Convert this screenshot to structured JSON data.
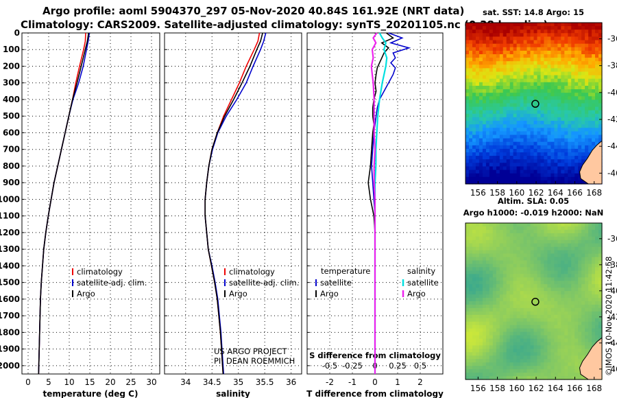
{
  "title": {
    "line1": "Argo profile: aoml 5904370_297 05-Nov-2020 40.84S 161.92E (NRT data)",
    "line2": "Climatology: CARS2009. Satellite-adjusted climatology: synTS_20201105.nc (0.38d earlier)"
  },
  "colors": {
    "climatology": "#ee0000",
    "satellite": "#0000cc",
    "argo": "#000000",
    "sal_sat": "#00e0e0",
    "sal_argo": "#ee22ee"
  },
  "chart_data": [
    {
      "type": "line",
      "name": "temperature-profile",
      "xlabel": "temperature (deg C)",
      "ylabel": "depth (dbar)",
      "xlim": [
        -1.5,
        32
      ],
      "ylim": [
        0,
        2050
      ],
      "xticks": [
        0,
        5,
        10,
        15,
        20,
        25,
        30
      ],
      "yticks": [
        0,
        100,
        200,
        300,
        400,
        500,
        600,
        700,
        800,
        900,
        1000,
        1100,
        1200,
        1300,
        1400,
        1500,
        1600,
        1700,
        1800,
        1900,
        2000
      ],
      "legend": [
        "climatology",
        "satellite-adj. clim.",
        "Argo"
      ],
      "legend_position": "bottom-center",
      "series": [
        {
          "name": "climatology",
          "depth": [
            0,
            50,
            100,
            200,
            300,
            400,
            500,
            600,
            700,
            800,
            900,
            1000,
            1100,
            1200,
            1300,
            1400,
            1500,
            1600,
            1700,
            1800,
            1900,
            2000,
            2050
          ],
          "values": [
            14.0,
            13.9,
            13.5,
            12.5,
            11.6,
            10.8,
            9.9,
            9.0,
            8.1,
            7.2,
            6.3,
            5.6,
            4.9,
            4.3,
            3.8,
            3.5,
            3.2,
            3.0,
            2.9,
            2.8,
            2.7,
            2.6,
            2.55
          ]
        },
        {
          "name": "satellite-adj. clim.",
          "depth": [
            0,
            50,
            100,
            200,
            300,
            400,
            500,
            600,
            700,
            800,
            900,
            1000,
            1100,
            1200,
            1300,
            1400,
            1500,
            1600,
            1700,
            1800,
            1900,
            2000,
            2050
          ],
          "values": [
            14.9,
            14.6,
            14.2,
            13.4,
            12.3,
            10.9,
            9.9,
            9.0,
            8.1,
            7.2,
            6.3,
            5.6,
            4.9,
            4.3,
            3.8,
            3.5,
            3.2,
            3.0,
            2.9,
            2.8,
            2.7,
            2.6,
            2.55
          ]
        },
        {
          "name": "Argo",
          "depth": [
            0,
            50,
            100,
            200,
            300,
            400,
            500,
            600,
            700,
            800,
            900,
            1000,
            1100,
            1200,
            1300,
            1400,
            1500,
            1600,
            1700,
            1800,
            1900,
            2000,
            2050
          ],
          "values": [
            14.7,
            14.4,
            13.9,
            12.9,
            11.9,
            10.8,
            9.9,
            9.0,
            8.1,
            7.2,
            6.3,
            5.6,
            4.9,
            4.3,
            3.8,
            3.5,
            3.2,
            3.0,
            2.9,
            2.8,
            2.7,
            2.6,
            2.55
          ]
        }
      ]
    },
    {
      "type": "line",
      "name": "salinity-profile",
      "xlabel": "salinity",
      "xlim": [
        33.6,
        36.2
      ],
      "ylim": [
        0,
        2050
      ],
      "xticks": [
        34,
        34.5,
        35,
        35.5,
        36
      ],
      "xtick_labels": [
        "34",
        "34.5",
        "35",
        "35.5",
        "36"
      ],
      "legend": [
        "climatology",
        "satellite-adj. clim.",
        "Argo"
      ],
      "legend_position": "bottom-center",
      "annotation": [
        "US ARGO PROJECT",
        "PI: DEAN ROEMMICH"
      ],
      "series": [
        {
          "name": "climatology",
          "depth": [
            0,
            50,
            100,
            200,
            300,
            400,
            500,
            600,
            700,
            800,
            900,
            1000,
            1100,
            1200,
            1300,
            1400,
            1500,
            1600,
            1700,
            1800,
            1900,
            2000,
            2050
          ],
          "values": [
            35.4,
            35.37,
            35.3,
            35.15,
            35.02,
            34.87,
            34.72,
            34.6,
            34.5,
            34.44,
            34.4,
            34.37,
            34.37,
            34.4,
            34.43,
            34.49,
            34.55,
            34.6,
            34.63,
            34.66,
            34.68,
            34.7,
            34.71
          ]
        },
        {
          "name": "satellite-adj. clim.",
          "depth": [
            0,
            50,
            100,
            200,
            300,
            400,
            500,
            600,
            700,
            800,
            900,
            1000,
            1100,
            1200,
            1300,
            1400,
            1500,
            1600,
            1700,
            1800,
            1900,
            2000,
            2050
          ],
          "values": [
            35.52,
            35.48,
            35.42,
            35.28,
            35.15,
            34.97,
            34.77,
            34.61,
            34.51,
            34.44,
            34.4,
            34.37,
            34.37,
            34.4,
            34.43,
            34.5,
            34.56,
            34.61,
            34.64,
            34.67,
            34.69,
            34.71,
            34.72
          ]
        },
        {
          "name": "Argo",
          "depth": [
            0,
            50,
            100,
            200,
            300,
            400,
            500,
            600,
            700,
            800,
            900,
            1000,
            1100,
            1200,
            1300,
            1400,
            1500,
            1600,
            1700,
            1800,
            1900,
            2000,
            2050
          ],
          "values": [
            35.46,
            35.42,
            35.35,
            35.22,
            35.07,
            34.91,
            34.74,
            34.6,
            34.5,
            34.44,
            34.4,
            34.37,
            34.37,
            34.4,
            34.43,
            34.49,
            34.55,
            34.6,
            34.63,
            34.66,
            34.68,
            34.7,
            34.71
          ]
        }
      ]
    },
    {
      "type": "line",
      "name": "difference-profile",
      "xlabel": "T difference from climatology",
      "xlabel_top": "S difference from climatology",
      "xlim": [
        -3,
        3
      ],
      "ylim": [
        0,
        2050
      ],
      "xticks": [
        -2,
        -1,
        0,
        1,
        2
      ],
      "xticks_S": [
        -0.5,
        -0.25,
        0,
        0.25,
        0.5
      ],
      "xtick_labels_S": [
        "-0.5",
        "-0.25",
        "0",
        "0.25",
        "0.5"
      ],
      "legend_temperature": {
        "heading": "temperature",
        "items": [
          "satellite",
          "Argo"
        ]
      },
      "legend_salinity": {
        "heading": "salinity",
        "items": [
          "satellite",
          "Argo"
        ]
      },
      "series": [
        {
          "name": "temperature satellite",
          "depth": [
            0,
            30,
            60,
            90,
            120,
            150,
            180,
            210,
            250,
            300,
            350,
            400,
            450,
            500,
            550,
            600,
            700,
            800,
            900,
            1000,
            1100,
            1200,
            1400,
            1600,
            2050
          ],
          "values": [
            0.6,
            1.2,
            0.7,
            1.5,
            0.8,
            0.9,
            0.7,
            0.9,
            0.8,
            0.6,
            0.4,
            0.2,
            0.1,
            0.05,
            0.0,
            -0.05,
            -0.1,
            -0.15,
            -0.1,
            -0.05,
            0.0,
            0.0,
            0.0,
            0.0,
            0.0
          ]
        },
        {
          "name": "temperature Argo",
          "depth": [
            0,
            30,
            60,
            90,
            120,
            150,
            180,
            210,
            250,
            300,
            350,
            400,
            450,
            500,
            550,
            600,
            700,
            800,
            900,
            1000,
            1100,
            1200,
            1400,
            1600,
            2050
          ],
          "values": [
            0.5,
            0.8,
            0.3,
            0.6,
            0.4,
            0.3,
            0.2,
            0.1,
            0.05,
            0.0,
            0.05,
            -0.05,
            -0.1,
            -0.1,
            -0.05,
            -0.1,
            -0.15,
            -0.2,
            -0.3,
            -0.2,
            -0.05,
            0.0,
            0.0,
            0.0,
            0.0
          ]
        },
        {
          "name": "salinity satellite",
          "depth": [
            0,
            30,
            60,
            100,
            150,
            200,
            250,
            300,
            400,
            500,
            600,
            700,
            800,
            900,
            1000,
            1100,
            1200,
            1400,
            1600,
            2050
          ],
          "values": [
            0.05,
            0.08,
            0.12,
            0.1,
            0.13,
            0.12,
            0.1,
            0.08,
            0.05,
            0.03,
            0.02,
            0.01,
            0.01,
            0.0,
            0.0,
            0.0,
            0.0,
            0.0,
            0.0,
            0.0
          ]
        },
        {
          "name": "salinity Argo",
          "depth": [
            0,
            30,
            60,
            100,
            150,
            200,
            250,
            300,
            400,
            500,
            600,
            700,
            800,
            900,
            1000,
            1100,
            1200,
            1400,
            1600,
            2050
          ],
          "values": [
            0.02,
            -0.02,
            0.01,
            -0.03,
            -0.02,
            -0.04,
            -0.03,
            -0.02,
            -0.01,
            -0.01,
            -0.01,
            0.0,
            -0.01,
            -0.01,
            0.0,
            0.0,
            0.0,
            0.0,
            0.0,
            0.0
          ]
        }
      ]
    },
    {
      "type": "heatmap",
      "name": "sst-map",
      "title": "sat. SST: 14.8 Argo: 15",
      "xlim": [
        154.7,
        168.8
      ],
      "ylim": [
        -46.8,
        -34.8
      ],
      "xticks": [
        156,
        158,
        160,
        162,
        164,
        166,
        168
      ],
      "yticks": [
        -36,
        -38,
        -40,
        -42,
        -44,
        -46
      ],
      "float_position": {
        "lon": 161.92,
        "lat": -40.84
      }
    },
    {
      "type": "heatmap",
      "name": "sla-map",
      "title_line1": "Altim. SLA: 0.05",
      "title_line2": "Argo h1000: -0.019 h2000: NaN",
      "xlim": [
        154.7,
        168.8
      ],
      "ylim": [
        -46.8,
        -34.8
      ],
      "xticks": [
        156,
        158,
        160,
        162,
        164,
        166,
        168
      ],
      "yticks": [
        -36,
        -38,
        -40,
        -42,
        -44,
        -46
      ],
      "float_position": {
        "lon": 161.92,
        "lat": -40.84
      }
    }
  ],
  "footer": {
    "credit": "©IMOS 10-Nov-2020 11:42:58"
  }
}
